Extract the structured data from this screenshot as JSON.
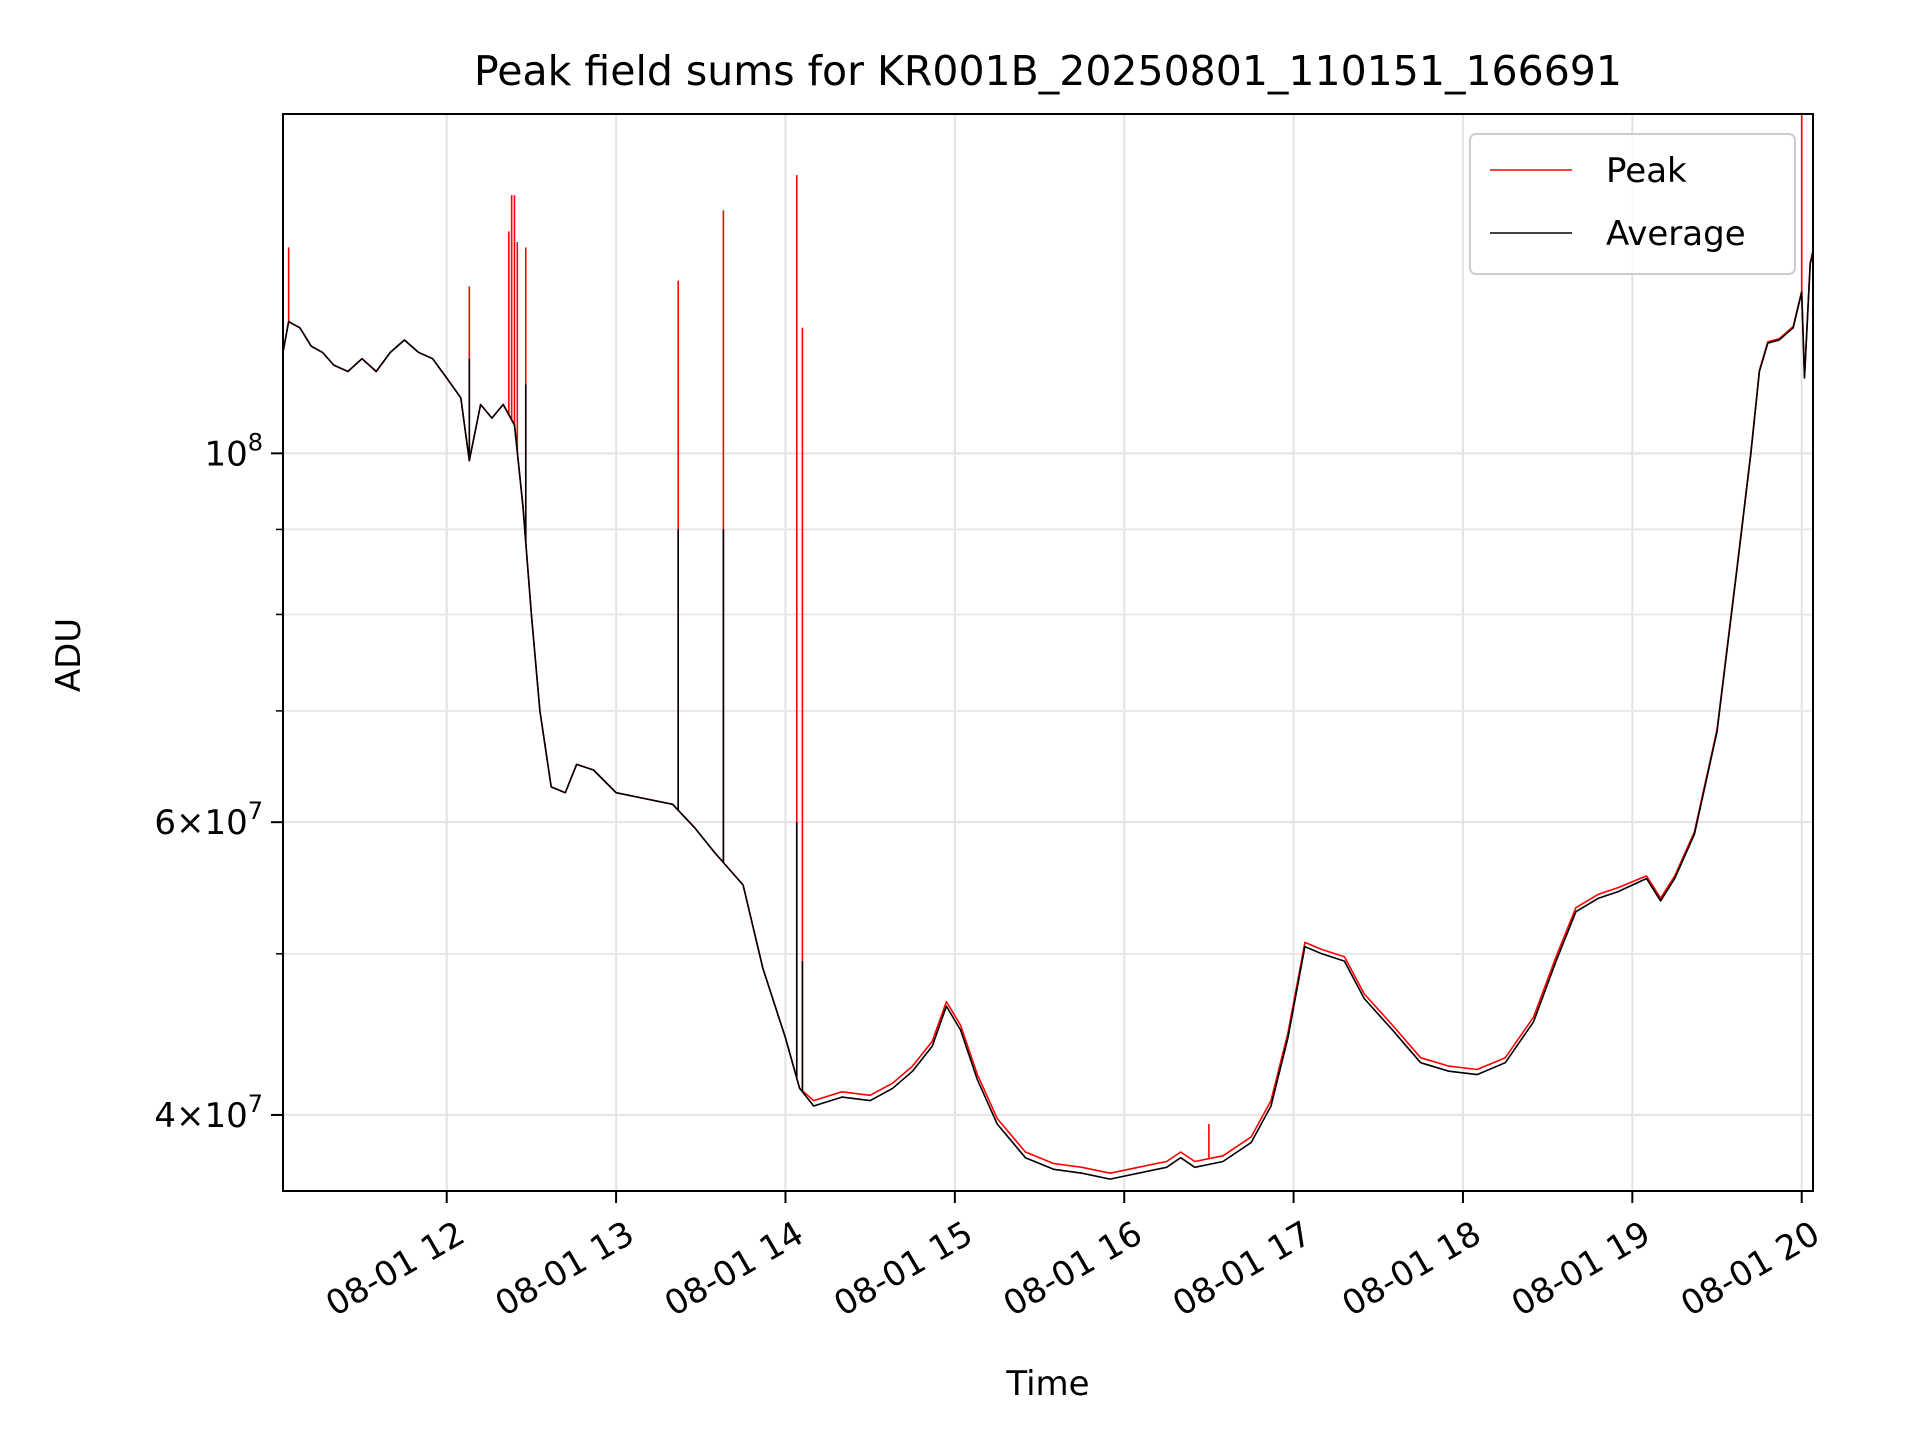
{
  "chart_data": {
    "type": "line",
    "title": "Peak field sums for KR001B_20250801_110151_166691",
    "xlabel": "Time",
    "ylabel": "ADU",
    "x_scale": "time",
    "y_scale": "log",
    "xlim": [
      "2025-08-01T11:02:00",
      "2025-08-01T20:04:00"
    ],
    "ylim": [
      36000000,
      160000000
    ],
    "x_ticks": [
      {
        "value": "2025-08-01T12:00",
        "label": "08-01 12"
      },
      {
        "value": "2025-08-01T13:00",
        "label": "08-01 13"
      },
      {
        "value": "2025-08-01T14:00",
        "label": "08-01 14"
      },
      {
        "value": "2025-08-01T15:00",
        "label": "08-01 15"
      },
      {
        "value": "2025-08-01T16:00",
        "label": "08-01 16"
      },
      {
        "value": "2025-08-01T17:00",
        "label": "08-01 17"
      },
      {
        "value": "2025-08-01T18:00",
        "label": "08-01 18"
      },
      {
        "value": "2025-08-01T19:00",
        "label": "08-01 19"
      },
      {
        "value": "2025-08-01T20:00",
        "label": "08-01 20"
      }
    ],
    "y_ticks": [
      {
        "value": 40000000,
        "mantissa": "4",
        "exponent": "7"
      },
      {
        "value": 60000000,
        "mantissa": "6",
        "exponent": "7"
      },
      {
        "value": 100000000,
        "mantissa": "10",
        "exponent": "8"
      }
    ],
    "y_minor_ticks": [
      50000000,
      70000000,
      80000000,
      90000000
    ],
    "grid": true,
    "legend": {
      "position": "top-right"
    },
    "series": [
      {
        "name": "Average",
        "color": "#000000",
        "points": [
          [
            "2025-08-01T11:02",
            115000000
          ],
          [
            "2025-08-01T11:04",
            120000000
          ],
          [
            "2025-08-01T11:08",
            119000000
          ],
          [
            "2025-08-01T11:12",
            116000000
          ],
          [
            "2025-08-01T11:16",
            115000000
          ],
          [
            "2025-08-01T11:20",
            113000000
          ],
          [
            "2025-08-01T11:25",
            112000000
          ],
          [
            "2025-08-01T11:30",
            114000000
          ],
          [
            "2025-08-01T11:35",
            112000000
          ],
          [
            "2025-08-01T11:40",
            115000000
          ],
          [
            "2025-08-01T11:45",
            117000000
          ],
          [
            "2025-08-01T11:50",
            115000000
          ],
          [
            "2025-08-01T11:55",
            114000000
          ],
          [
            "2025-08-01T12:00",
            111000000
          ],
          [
            "2025-08-01T12:05",
            108000000
          ],
          [
            "2025-08-01T12:08",
            99000000
          ],
          [
            "2025-08-01T12:12",
            107000000
          ],
          [
            "2025-08-01T12:16",
            105000000
          ],
          [
            "2025-08-01T12:20",
            107000000
          ],
          [
            "2025-08-01T12:24",
            104000000
          ],
          [
            "2025-08-01T12:27",
            93000000
          ],
          [
            "2025-08-01T12:30",
            80000000
          ],
          [
            "2025-08-01T12:33",
            70000000
          ],
          [
            "2025-08-01T12:37",
            63000000
          ],
          [
            "2025-08-01T12:42",
            62500000
          ],
          [
            "2025-08-01T12:46",
            65000000
          ],
          [
            "2025-08-01T12:52",
            64500000
          ],
          [
            "2025-08-01T13:00",
            62500000
          ],
          [
            "2025-08-01T13:10",
            62000000
          ],
          [
            "2025-08-01T13:20",
            61500000
          ],
          [
            "2025-08-01T13:28",
            59500000
          ],
          [
            "2025-08-01T13:35",
            57500000
          ],
          [
            "2025-08-01T13:45",
            55000000
          ],
          [
            "2025-08-01T13:52",
            49000000
          ],
          [
            "2025-08-01T14:00",
            44500000
          ],
          [
            "2025-08-01T14:05",
            41500000
          ],
          [
            "2025-08-01T14:10",
            40500000
          ],
          [
            "2025-08-01T14:20",
            41000000
          ],
          [
            "2025-08-01T14:30",
            40800000
          ],
          [
            "2025-08-01T14:38",
            41500000
          ],
          [
            "2025-08-01T14:45",
            42500000
          ],
          [
            "2025-08-01T14:52",
            44000000
          ],
          [
            "2025-08-01T14:57",
            46500000
          ],
          [
            "2025-08-01T15:02",
            45000000
          ],
          [
            "2025-08-01T15:08",
            42000000
          ],
          [
            "2025-08-01T15:15",
            39500000
          ],
          [
            "2025-08-01T15:25",
            37700000
          ],
          [
            "2025-08-01T15:35",
            37100000
          ],
          [
            "2025-08-01T15:45",
            36900000
          ],
          [
            "2025-08-01T15:55",
            36600000
          ],
          [
            "2025-08-01T16:05",
            36900000
          ],
          [
            "2025-08-01T16:15",
            37200000
          ],
          [
            "2025-08-01T16:20",
            37700000
          ],
          [
            "2025-08-01T16:25",
            37200000
          ],
          [
            "2025-08-01T16:35",
            37500000
          ],
          [
            "2025-08-01T16:45",
            38500000
          ],
          [
            "2025-08-01T16:52",
            40500000
          ],
          [
            "2025-08-01T16:58",
            44500000
          ],
          [
            "2025-08-01T17:04",
            50500000
          ],
          [
            "2025-08-01T17:10",
            50000000
          ],
          [
            "2025-08-01T17:18",
            49500000
          ],
          [
            "2025-08-01T17:25",
            47000000
          ],
          [
            "2025-08-01T17:35",
            45000000
          ],
          [
            "2025-08-01T17:45",
            43000000
          ],
          [
            "2025-08-01T17:55",
            42500000
          ],
          [
            "2025-08-01T18:05",
            42300000
          ],
          [
            "2025-08-01T18:15",
            43000000
          ],
          [
            "2025-08-01T18:25",
            45500000
          ],
          [
            "2025-08-01T18:33",
            49500000
          ],
          [
            "2025-08-01T18:40",
            53000000
          ],
          [
            "2025-08-01T18:48",
            54000000
          ],
          [
            "2025-08-01T18:55",
            54500000
          ],
          [
            "2025-08-01T19:05",
            55500000
          ],
          [
            "2025-08-01T19:10",
            53800000
          ],
          [
            "2025-08-01T19:15",
            55500000
          ],
          [
            "2025-08-01T19:22",
            59000000
          ],
          [
            "2025-08-01T19:30",
            68000000
          ],
          [
            "2025-08-01T19:37",
            85000000
          ],
          [
            "2025-08-01T19:42",
            100000000
          ],
          [
            "2025-08-01T19:45",
            112000000
          ],
          [
            "2025-08-01T19:48",
            116500000
          ],
          [
            "2025-08-01T19:52",
            117000000
          ],
          [
            "2025-08-01T19:57",
            119000000
          ],
          [
            "2025-08-01T20:00",
            125000000
          ],
          [
            "2025-08-01T20:01",
            111000000
          ],
          [
            "2025-08-01T20:03",
            130000000
          ],
          [
            "2025-08-01T20:04",
            132000000
          ]
        ],
        "spikes": [
          [
            "2025-08-01T12:08",
            114000000
          ],
          [
            "2025-08-01T12:28",
            110000000
          ],
          [
            "2025-08-01T13:22",
            90000000
          ],
          [
            "2025-08-01T13:38",
            90000000
          ],
          [
            "2025-08-01T14:04",
            60000000
          ],
          [
            "2025-08-01T14:06",
            49500000
          ]
        ]
      },
      {
        "name": "Peak",
        "color": "#ff0000",
        "points": [
          [
            "2025-08-01T11:02",
            115000000
          ],
          [
            "2025-08-01T11:04",
            120000000
          ],
          [
            "2025-08-01T11:08",
            119000000
          ],
          [
            "2025-08-01T11:12",
            116000000
          ],
          [
            "2025-08-01T11:16",
            115000000
          ],
          [
            "2025-08-01T11:20",
            113000000
          ],
          [
            "2025-08-01T11:25",
            112000000
          ],
          [
            "2025-08-01T11:30",
            114000000
          ],
          [
            "2025-08-01T11:35",
            112000000
          ],
          [
            "2025-08-01T11:40",
            115000000
          ],
          [
            "2025-08-01T11:45",
            117000000
          ],
          [
            "2025-08-01T11:50",
            115000000
          ],
          [
            "2025-08-01T11:55",
            114000000
          ],
          [
            "2025-08-01T12:00",
            111000000
          ],
          [
            "2025-08-01T12:05",
            108000000
          ],
          [
            "2025-08-01T12:08",
            99000000
          ],
          [
            "2025-08-01T12:12",
            107000000
          ],
          [
            "2025-08-01T12:16",
            105000000
          ],
          [
            "2025-08-01T12:20",
            107000000
          ],
          [
            "2025-08-01T12:24",
            104000000
          ],
          [
            "2025-08-01T12:27",
            93000000
          ],
          [
            "2025-08-01T12:30",
            80000000
          ],
          [
            "2025-08-01T12:33",
            70000000
          ],
          [
            "2025-08-01T12:37",
            63000000
          ],
          [
            "2025-08-01T12:42",
            62500000
          ],
          [
            "2025-08-01T12:46",
            65000000
          ],
          [
            "2025-08-01T12:52",
            64500000
          ],
          [
            "2025-08-01T13:00",
            62500000
          ],
          [
            "2025-08-01T13:10",
            62000000
          ],
          [
            "2025-08-01T13:20",
            61500000
          ],
          [
            "2025-08-01T13:28",
            59500000
          ],
          [
            "2025-08-01T13:35",
            57500000
          ],
          [
            "2025-08-01T13:45",
            55000000
          ],
          [
            "2025-08-01T13:52",
            49000000
          ],
          [
            "2025-08-01T14:00",
            44500000
          ],
          [
            "2025-08-01T14:05",
            41500000
          ],
          [
            "2025-08-01T14:10",
            40800000
          ],
          [
            "2025-08-01T14:20",
            41300000
          ],
          [
            "2025-08-01T14:30",
            41100000
          ],
          [
            "2025-08-01T14:38",
            41800000
          ],
          [
            "2025-08-01T14:45",
            42800000
          ],
          [
            "2025-08-01T14:52",
            44300000
          ],
          [
            "2025-08-01T14:57",
            46800000
          ],
          [
            "2025-08-01T15:02",
            45300000
          ],
          [
            "2025-08-01T15:08",
            42300000
          ],
          [
            "2025-08-01T15:15",
            39800000
          ],
          [
            "2025-08-01T15:25",
            38000000
          ],
          [
            "2025-08-01T15:35",
            37400000
          ],
          [
            "2025-08-01T15:45",
            37200000
          ],
          [
            "2025-08-01T15:55",
            36900000
          ],
          [
            "2025-08-01T16:05",
            37200000
          ],
          [
            "2025-08-01T16:15",
            37500000
          ],
          [
            "2025-08-01T16:20",
            38000000
          ],
          [
            "2025-08-01T16:25",
            37500000
          ],
          [
            "2025-08-01T16:35",
            37800000
          ],
          [
            "2025-08-01T16:45",
            38800000
          ],
          [
            "2025-08-01T16:52",
            40800000
          ],
          [
            "2025-08-01T16:58",
            44800000
          ],
          [
            "2025-08-01T17:04",
            50800000
          ],
          [
            "2025-08-01T17:10",
            50300000
          ],
          [
            "2025-08-01T17:18",
            49800000
          ],
          [
            "2025-08-01T17:25",
            47300000
          ],
          [
            "2025-08-01T17:35",
            45300000
          ],
          [
            "2025-08-01T17:45",
            43300000
          ],
          [
            "2025-08-01T17:55",
            42800000
          ],
          [
            "2025-08-01T18:05",
            42600000
          ],
          [
            "2025-08-01T18:15",
            43300000
          ],
          [
            "2025-08-01T18:25",
            45800000
          ],
          [
            "2025-08-01T18:33",
            49800000
          ],
          [
            "2025-08-01T18:40",
            53300000
          ],
          [
            "2025-08-01T18:48",
            54300000
          ],
          [
            "2025-08-01T18:55",
            54800000
          ],
          [
            "2025-08-01T19:05",
            55700000
          ],
          [
            "2025-08-01T19:10",
            54000000
          ],
          [
            "2025-08-01T19:15",
            55700000
          ],
          [
            "2025-08-01T19:22",
            59200000
          ],
          [
            "2025-08-01T19:30",
            68200000
          ],
          [
            "2025-08-01T19:37",
            85200000
          ],
          [
            "2025-08-01T19:42",
            100200000
          ],
          [
            "2025-08-01T19:45",
            112200000
          ],
          [
            "2025-08-01T19:48",
            116700000
          ],
          [
            "2025-08-01T19:52",
            117200000
          ],
          [
            "2025-08-01T19:57",
            119200000
          ],
          [
            "2025-08-01T20:00",
            125200000
          ],
          [
            "2025-08-01T20:01",
            111200000
          ],
          [
            "2025-08-01T20:03",
            130200000
          ],
          [
            "2025-08-01T20:04",
            132500000
          ]
        ],
        "spikes": [
          [
            "2025-08-01T11:04",
            133000000
          ],
          [
            "2025-08-01T12:08",
            126000000
          ],
          [
            "2025-08-01T12:22",
            136000000
          ],
          [
            "2025-08-01T12:23",
            143000000
          ],
          [
            "2025-08-01T12:24",
            143000000
          ],
          [
            "2025-08-01T12:25",
            134000000
          ],
          [
            "2025-08-01T12:28",
            133000000
          ],
          [
            "2025-08-01T13:22",
            127000000
          ],
          [
            "2025-08-01T13:38",
            140000000
          ],
          [
            "2025-08-01T14:04",
            147000000
          ],
          [
            "2025-08-01T14:06",
            119000000
          ],
          [
            "2025-08-01T16:30",
            39500000
          ],
          [
            "2025-08-01T20:00",
            160000000
          ]
        ]
      }
    ]
  }
}
